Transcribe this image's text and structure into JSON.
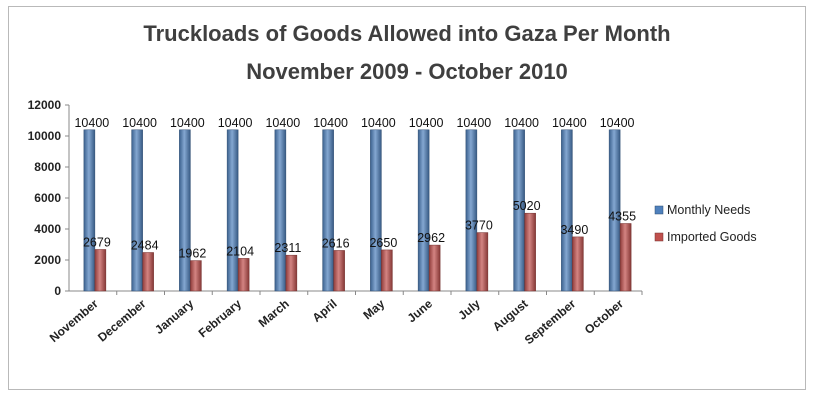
{
  "chart_data": {
    "type": "bar",
    "title": "Truckloads of Goods Allowed into Gaza Per Month",
    "subtitle": "November 2009 - October 2010",
    "xlabel": "",
    "ylabel": "",
    "ylim": [
      0,
      12000
    ],
    "yticks": [
      0,
      2000,
      4000,
      6000,
      8000,
      10000,
      12000
    ],
    "grid": false,
    "legend_position": "right",
    "categories": [
      "November",
      "December",
      "January",
      "February",
      "March",
      "April",
      "May",
      "June",
      "July",
      "August",
      "September",
      "October"
    ],
    "series": [
      {
        "name": "Monthly Needs",
        "color": "#4f81bd",
        "values": [
          10400,
          10400,
          10400,
          10400,
          10400,
          10400,
          10400,
          10400,
          10400,
          10400,
          10400,
          10400
        ]
      },
      {
        "name": "Imported Goods",
        "color": "#c0504d",
        "values": [
          2679,
          2484,
          1962,
          2104,
          2311,
          2616,
          2650,
          2962,
          3770,
          5020,
          3490,
          4355
        ]
      }
    ]
  }
}
